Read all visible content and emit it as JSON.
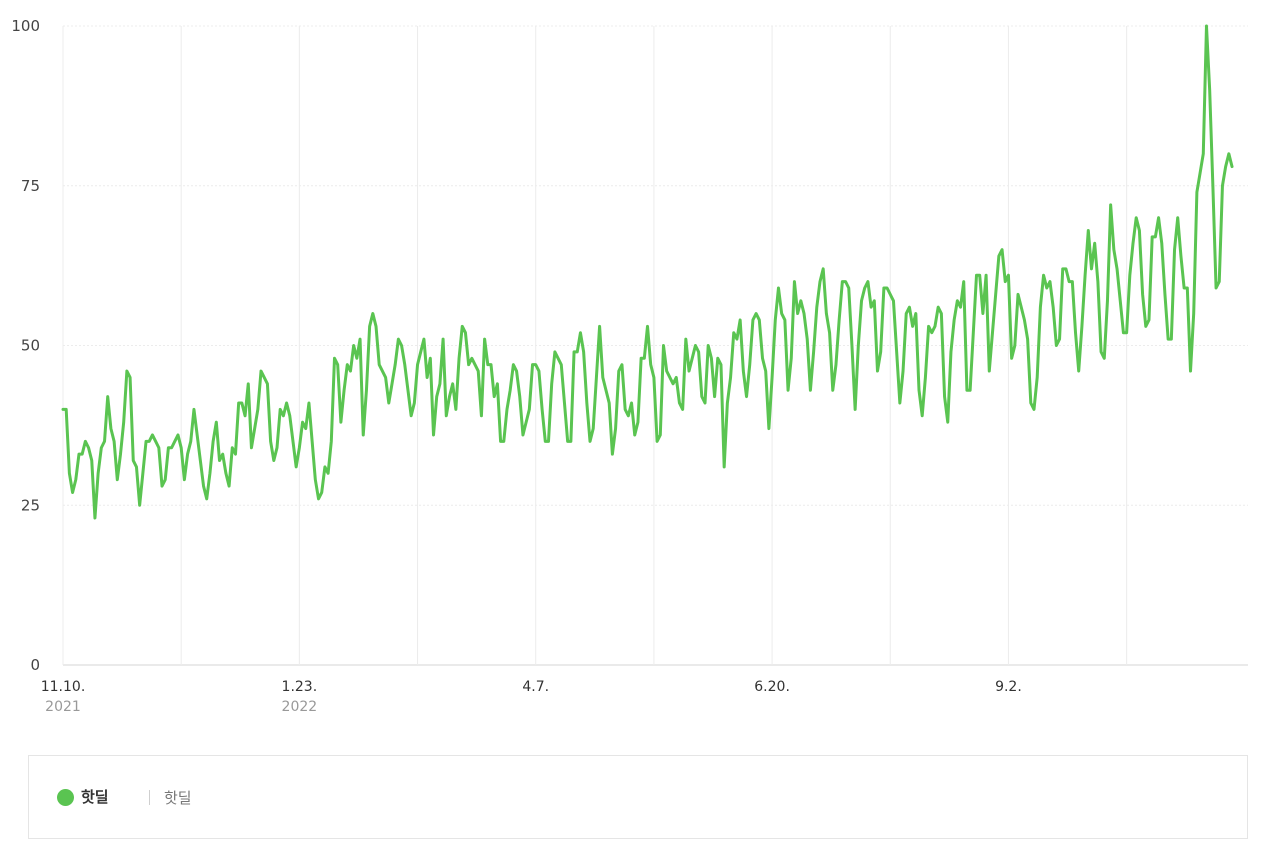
{
  "chart_data": {
    "type": "line",
    "y_ticks": [
      "0",
      "25",
      "50",
      "75",
      "100"
    ],
    "ylim": [
      0,
      100
    ],
    "x_tick_labels": [
      {
        "date": "2021-11-10",
        "label": "11.10.",
        "year": "2021"
      },
      {
        "date": "2022-01-23",
        "label": "1.23.",
        "year": "2022"
      },
      {
        "date": "2022-04-07",
        "label": "4.7.",
        "year": ""
      },
      {
        "date": "2022-06-20",
        "label": "6.20.",
        "year": ""
      },
      {
        "date": "2022-09-02",
        "label": "9.2.",
        "year": ""
      }
    ],
    "grid_dates": [
      "2021-11-10",
      "2021-12-17",
      "2022-01-23",
      "2022-03-01",
      "2022-04-07",
      "2022-05-14",
      "2022-06-20",
      "2022-07-27",
      "2022-09-02",
      "2022-10-09"
    ],
    "x_range": [
      "2021-11-10",
      "2022-11-16"
    ],
    "grid": true,
    "legend": "bottom",
    "series": [
      {
        "name": "핫딜",
        "color": "#5ac451",
        "x_start": "2021-11-10",
        "x_step": "1 day",
        "values": [
          40,
          40,
          30,
          27,
          29,
          33,
          33,
          35,
          34,
          32,
          23,
          30,
          34,
          35,
          42,
          37,
          35,
          29,
          33,
          38,
          46,
          45,
          32,
          31,
          25,
          30,
          35,
          35,
          36,
          35,
          34,
          28,
          29,
          34,
          34,
          35,
          36,
          34,
          29,
          33,
          35,
          40,
          36,
          32,
          28,
          26,
          30,
          35,
          38,
          32,
          33,
          30,
          28,
          34,
          33,
          41,
          41,
          39,
          44,
          34,
          37,
          40,
          46,
          45,
          44,
          35,
          32,
          34,
          40,
          39,
          41,
          39,
          35,
          31,
          34,
          38,
          37,
          41,
          35,
          29,
          26,
          27,
          31,
          30,
          35,
          48,
          47,
          38,
          43,
          47,
          46,
          50,
          48,
          51,
          36,
          43,
          53,
          55,
          53,
          47,
          46,
          45,
          41,
          44,
          47,
          51,
          50,
          47,
          43,
          39,
          41,
          47,
          49,
          51,
          45,
          48,
          36,
          42,
          44,
          51,
          39,
          42,
          44,
          40,
          48,
          53,
          52,
          47,
          48,
          47,
          46,
          39,
          51,
          47,
          47,
          42,
          44,
          35,
          35,
          40,
          43,
          47,
          46,
          42,
          36,
          38,
          40,
          47,
          47,
          46,
          40,
          35,
          35,
          44,
          49,
          48,
          47,
          41,
          35,
          35,
          49,
          49,
          52,
          49,
          41,
          35,
          37,
          45,
          53,
          45,
          43,
          41,
          33,
          37,
          46,
          47,
          40,
          39,
          41,
          36,
          38,
          48,
          48,
          53,
          47,
          45,
          35,
          36,
          50,
          46,
          45,
          44,
          45,
          41,
          40,
          51,
          46,
          48,
          50,
          49,
          42,
          41,
          50,
          48,
          42,
          48,
          47,
          31,
          41,
          45,
          52,
          51,
          54,
          46,
          42,
          47,
          54,
          55,
          54,
          48,
          46,
          37,
          45,
          54,
          59,
          55,
          54,
          43,
          48,
          60,
          55,
          57,
          55,
          51,
          43,
          49,
          56,
          60,
          62,
          55,
          52,
          43,
          47,
          54,
          60,
          60,
          59,
          50,
          40,
          50,
          57,
          59,
          60,
          56,
          57,
          46,
          49,
          59,
          59,
          58,
          57,
          49,
          41,
          46,
          55,
          56,
          53,
          55,
          43,
          39,
          45,
          53,
          52,
          53,
          56,
          55,
          42,
          38,
          49,
          54,
          57,
          56,
          60,
          43,
          43,
          52,
          61,
          61,
          55,
          61,
          46,
          52,
          58,
          64,
          65,
          60,
          61,
          48,
          50,
          58,
          56,
          54,
          51,
          41,
          40,
          45,
          56,
          61,
          59,
          60,
          56,
          50,
          51,
          62,
          62,
          60,
          60,
          52,
          46,
          53,
          61,
          68,
          62,
          66,
          60,
          49,
          48,
          57,
          72,
          65,
          62,
          57,
          52,
          52,
          61,
          66,
          70,
          68,
          58,
          53,
          54,
          67,
          67,
          70,
          66,
          58,
          51,
          51,
          65,
          70,
          64,
          59,
          59,
          46,
          55,
          74,
          77,
          80,
          100,
          90,
          75,
          59,
          60,
          75,
          78,
          80,
          78
        ]
      }
    ]
  },
  "legend": {
    "series_label": "핫딜",
    "term_label": "핫딜"
  }
}
